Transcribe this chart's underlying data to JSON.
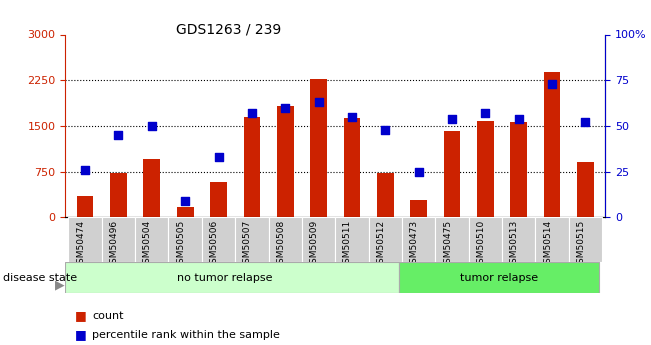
{
  "title": "GDS1263 / 239",
  "categories": [
    "GSM50474",
    "GSM50496",
    "GSM50504",
    "GSM50505",
    "GSM50506",
    "GSM50507",
    "GSM50508",
    "GSM50509",
    "GSM50511",
    "GSM50512",
    "GSM50473",
    "GSM50475",
    "GSM50510",
    "GSM50513",
    "GSM50514",
    "GSM50515"
  ],
  "count_values": [
    350,
    720,
    950,
    175,
    580,
    1650,
    1820,
    2270,
    1630,
    730,
    290,
    1420,
    1580,
    1570,
    2380,
    900
  ],
  "percentile_values": [
    26,
    45,
    50,
    9,
    33,
    57,
    60,
    63,
    55,
    48,
    25,
    54,
    57,
    54,
    73,
    52
  ],
  "no_tumor_count": 10,
  "tumor_count": 6,
  "ylim_left": [
    0,
    3000
  ],
  "ylim_right": [
    0,
    100
  ],
  "yticks_left": [
    0,
    750,
    1500,
    2250,
    3000
  ],
  "yticks_right": [
    0,
    25,
    50,
    75,
    100
  ],
  "bar_color": "#cc2200",
  "dot_color": "#0000cc",
  "no_tumor_color": "#ccffcc",
  "tumor_color": "#66ee66",
  "tick_bg_color": "#d0d0d0",
  "legend_count_color": "#cc2200",
  "legend_pct_color": "#0000cc",
  "left_tick_color": "#cc2200",
  "right_tick_color": "#0000cc"
}
